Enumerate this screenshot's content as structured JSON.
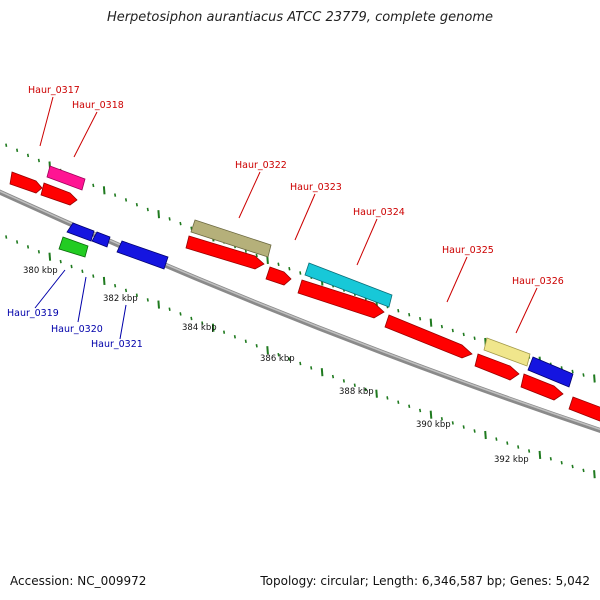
{
  "title": "Herpetosiphon aurantiacus ATCC 23779, complete genome",
  "footer": {
    "accession": "Accession: NC_009972",
    "summary": "Topology: circular; Length: 6,346,587 bp; Genes: 5,042"
  },
  "scale_labels": [
    "380 kbp",
    "382 kbp",
    "384 kbp",
    "386 kbp",
    "388 kbp",
    "390 kbp",
    "392 kbp"
  ],
  "gene_labels": {
    "top": [
      "Haur_0317",
      "Haur_0318",
      "Haur_0322",
      "Haur_0323",
      "Haur_0324",
      "Haur_0325",
      "Haur_0326"
    ],
    "bottom": [
      "Haur_0319",
      "Haur_0320",
      "Haur_0321"
    ]
  },
  "colors": {
    "backbone": "#8a8a8a",
    "tick": "#1f7a1f",
    "label_top": "#cc0000",
    "label_bottom": "#0000aa",
    "gene_red": "#ff0000",
    "gene_magenta": "#ff1493",
    "gene_olive": "#b5b07a",
    "gene_cyan": "#17c8d8",
    "gene_khaki": "#f0e68c",
    "gene_blue": "#1515e0",
    "gene_green": "#22cc22"
  }
}
